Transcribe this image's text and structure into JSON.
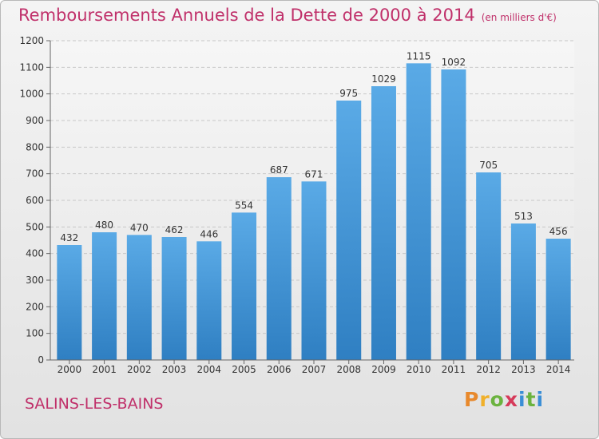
{
  "title": "Remboursements Annuels de la Dette de 2000 à 2014",
  "unit_note": "(en milliers d'€)",
  "commune": "SALINS-LES-BAINS",
  "brand": {
    "text": "Proxiti",
    "letters": [
      {
        "ch": "P",
        "color": "#e8892c"
      },
      {
        "ch": "r",
        "color": "#f0b02a"
      },
      {
        "ch": "o",
        "color": "#6bb33f"
      },
      {
        "ch": "x",
        "color": "#d63a5a"
      },
      {
        "ch": "i",
        "color": "#3a8ed6"
      },
      {
        "ch": "t",
        "color": "#6bb33f"
      },
      {
        "ch": "i",
        "color": "#3a8ed6"
      }
    ]
  },
  "colors": {
    "bar_top": "#5aaae6",
    "bar_bottom": "#2f7fc2",
    "text": "#c0306a"
  },
  "chart_data": {
    "type": "bar",
    "categories": [
      "2000",
      "2001",
      "2002",
      "2003",
      "2004",
      "2005",
      "2006",
      "2007",
      "2008",
      "2009",
      "2010",
      "2011",
      "2012",
      "2013",
      "2014"
    ],
    "values": [
      432,
      480,
      470,
      462,
      446,
      554,
      687,
      671,
      975,
      1029,
      1115,
      1092,
      705,
      513,
      456
    ],
    "ylim": [
      0,
      1200
    ],
    "yticks": [
      0,
      100,
      200,
      300,
      400,
      500,
      600,
      700,
      800,
      900,
      1000,
      1100,
      1200
    ],
    "grid": true,
    "data_labels": true
  }
}
